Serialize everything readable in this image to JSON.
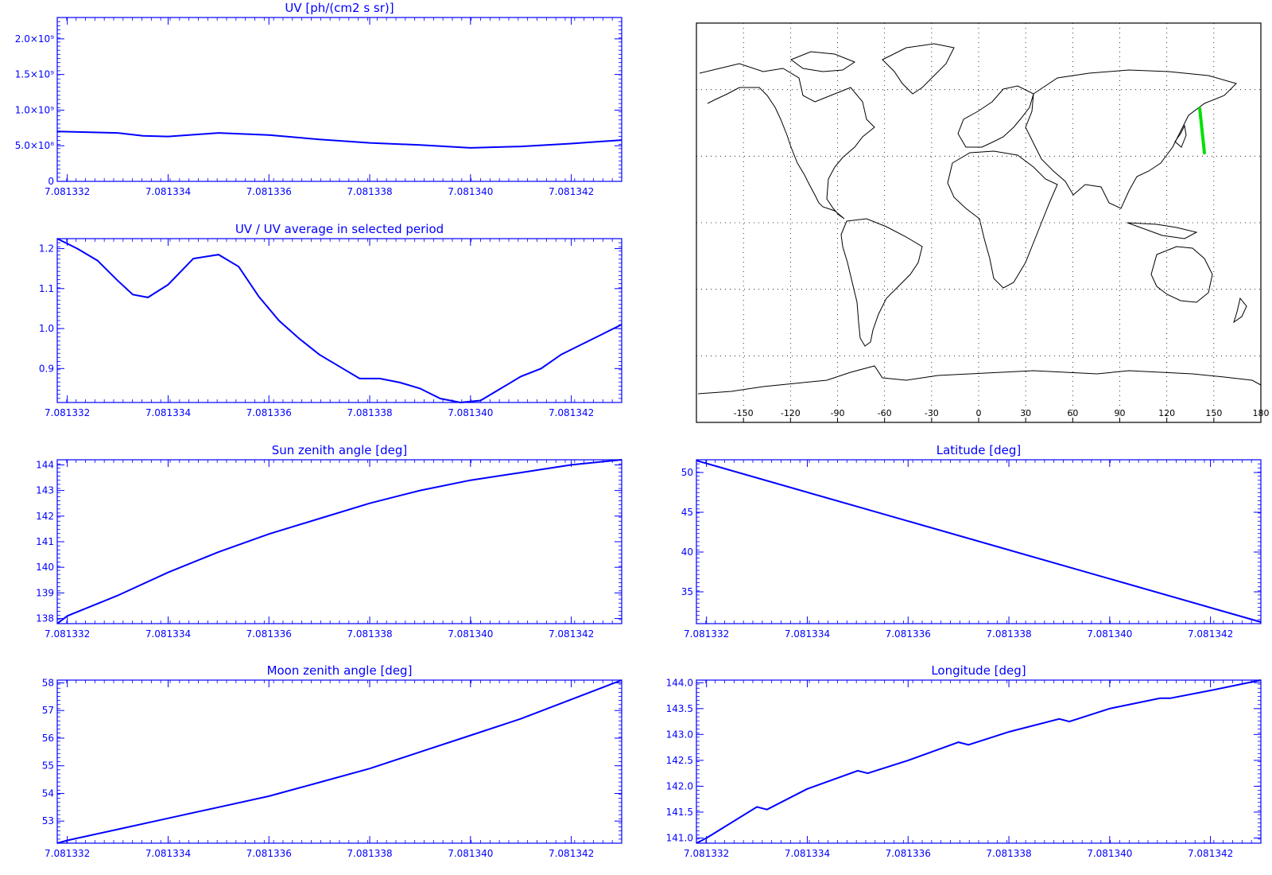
{
  "colors": {
    "accent": "#0000ff",
    "track": "#00e000",
    "map_ink": "#000000"
  },
  "x_ticks": [
    "7.081332",
    "7.081334",
    "7.081336",
    "7.081338",
    "7.081340",
    "7.081342"
  ],
  "x_range": [
    7.0813318,
    7.081343
  ],
  "map": {
    "lon_labels": [
      "-150",
      "-120",
      "-90",
      "-60",
      "-30",
      "0",
      "30",
      "60",
      "90",
      "120",
      "150",
      "180"
    ],
    "lon_values": [
      -150,
      -120,
      -90,
      -60,
      -30,
      0,
      30,
      60,
      90,
      120,
      150,
      180
    ],
    "track": [
      [
        141.0,
        51.5
      ],
      [
        141.6,
        47.0
      ],
      [
        142.3,
        43.0
      ],
      [
        142.9,
        39.0
      ],
      [
        143.5,
        35.5
      ],
      [
        144.0,
        31.5
      ]
    ]
  },
  "chart_data": [
    {
      "id": "uv",
      "type": "line",
      "title": "UV [ph/(cm2 s sr)]",
      "y_tick_labels": [
        "0",
        "5.0×10⁸",
        "1.0×10⁹",
        "1.5×10⁹",
        "2.0×10⁹"
      ],
      "y_tick_values": [
        0,
        500000000,
        1000000000,
        1500000000,
        2000000000
      ],
      "ylim": [
        0,
        2300000000
      ],
      "x": [
        7.0813318,
        7.081333,
        7.0813335,
        7.081334,
        7.081335,
        7.081336,
        7.081337,
        7.081338,
        7.081339,
        7.08134,
        7.081341,
        7.081342,
        7.081343
      ],
      "values": [
        700000000,
        680000000,
        640000000,
        630000000,
        680000000,
        650000000,
        590000000,
        540000000,
        510000000,
        470000000,
        490000000,
        530000000,
        580000000
      ]
    },
    {
      "id": "ratio",
      "type": "line",
      "title": "UV / UV average in selected period",
      "y_tick_labels": [
        "0.9",
        "1.0",
        "1.1",
        "1.2"
      ],
      "y_tick_values": [
        0.9,
        1.0,
        1.1,
        1.2
      ],
      "ylim": [
        0.815,
        1.225
      ],
      "x": [
        7.0813318,
        7.0813322,
        7.0813326,
        7.081333,
        7.0813333,
        7.0813336,
        7.081334,
        7.0813345,
        7.081335,
        7.0813354,
        7.0813358,
        7.0813362,
        7.0813366,
        7.081337,
        7.0813374,
        7.0813378,
        7.0813382,
        7.0813386,
        7.081339,
        7.0813394,
        7.0813398,
        7.0813402,
        7.0813406,
        7.081341,
        7.0813414,
        7.0813418,
        7.0813422,
        7.0813426,
        7.081343
      ],
      "values": [
        1.225,
        1.2,
        1.17,
        1.12,
        1.085,
        1.078,
        1.11,
        1.175,
        1.185,
        1.155,
        1.08,
        1.02,
        0.975,
        0.935,
        0.905,
        0.875,
        0.875,
        0.865,
        0.85,
        0.825,
        0.815,
        0.82,
        0.85,
        0.88,
        0.9,
        0.935,
        0.96,
        0.985,
        1.01
      ]
    },
    {
      "id": "sun",
      "type": "line",
      "title": "Sun zenith angle [deg]",
      "y_tick_labels": [
        "138",
        "139",
        "140",
        "141",
        "142",
        "143",
        "144"
      ],
      "y_tick_values": [
        138,
        139,
        140,
        141,
        142,
        143,
        144
      ],
      "ylim": [
        137.8,
        144.2
      ],
      "x": [
        7.0813318,
        7.081332,
        7.081333,
        7.081334,
        7.081335,
        7.081336,
        7.081337,
        7.081338,
        7.081339,
        7.08134,
        7.081341,
        7.081342,
        7.081343
      ],
      "values": [
        137.8,
        138.1,
        138.9,
        139.8,
        140.6,
        141.3,
        141.9,
        142.5,
        143.0,
        143.4,
        143.7,
        144.0,
        144.2
      ]
    },
    {
      "id": "lat",
      "type": "line",
      "title": "Latitude [deg]",
      "y_tick_labels": [
        "35",
        "40",
        "45",
        "50"
      ],
      "y_tick_values": [
        35,
        40,
        45,
        50
      ],
      "ylim": [
        31.0,
        51.6
      ],
      "x": [
        7.0813318,
        7.081343
      ],
      "values": [
        51.5,
        31.2
      ]
    },
    {
      "id": "moon",
      "type": "line",
      "title": "Moon zenith angle [deg]",
      "y_tick_labels": [
        "53",
        "54",
        "55",
        "56",
        "57",
        "58"
      ],
      "y_tick_values": [
        53,
        54,
        55,
        56,
        57,
        58
      ],
      "ylim": [
        52.2,
        58.1
      ],
      "x": [
        7.0813318,
        7.081332,
        7.081333,
        7.081334,
        7.081335,
        7.081336,
        7.081337,
        7.081338,
        7.081339,
        7.08134,
        7.081341,
        7.081342,
        7.081343
      ],
      "values": [
        52.2,
        52.3,
        52.7,
        53.1,
        53.5,
        53.9,
        54.4,
        54.9,
        55.5,
        56.1,
        56.7,
        57.4,
        58.1
      ]
    },
    {
      "id": "lon",
      "type": "line",
      "title": "Longitude [deg]",
      "y_tick_labels": [
        "141.0",
        "141.5",
        "142.0",
        "142.5",
        "143.0",
        "143.5",
        "144.0"
      ],
      "y_tick_values": [
        141.0,
        141.5,
        142.0,
        142.5,
        143.0,
        143.5,
        144.0
      ],
      "ylim": [
        140.9,
        144.05
      ],
      "x": [
        7.0813318,
        7.081332,
        7.081333,
        7.0813332,
        7.081334,
        7.081335,
        7.0813352,
        7.081336,
        7.081337,
        7.0813372,
        7.081338,
        7.081339,
        7.0813392,
        7.08134,
        7.081341,
        7.0813412,
        7.081342,
        7.081343
      ],
      "values": [
        140.9,
        141.0,
        141.6,
        141.55,
        141.95,
        142.3,
        142.25,
        142.5,
        142.85,
        142.8,
        143.05,
        143.3,
        143.25,
        143.5,
        143.7,
        143.7,
        143.85,
        144.05
      ]
    }
  ]
}
